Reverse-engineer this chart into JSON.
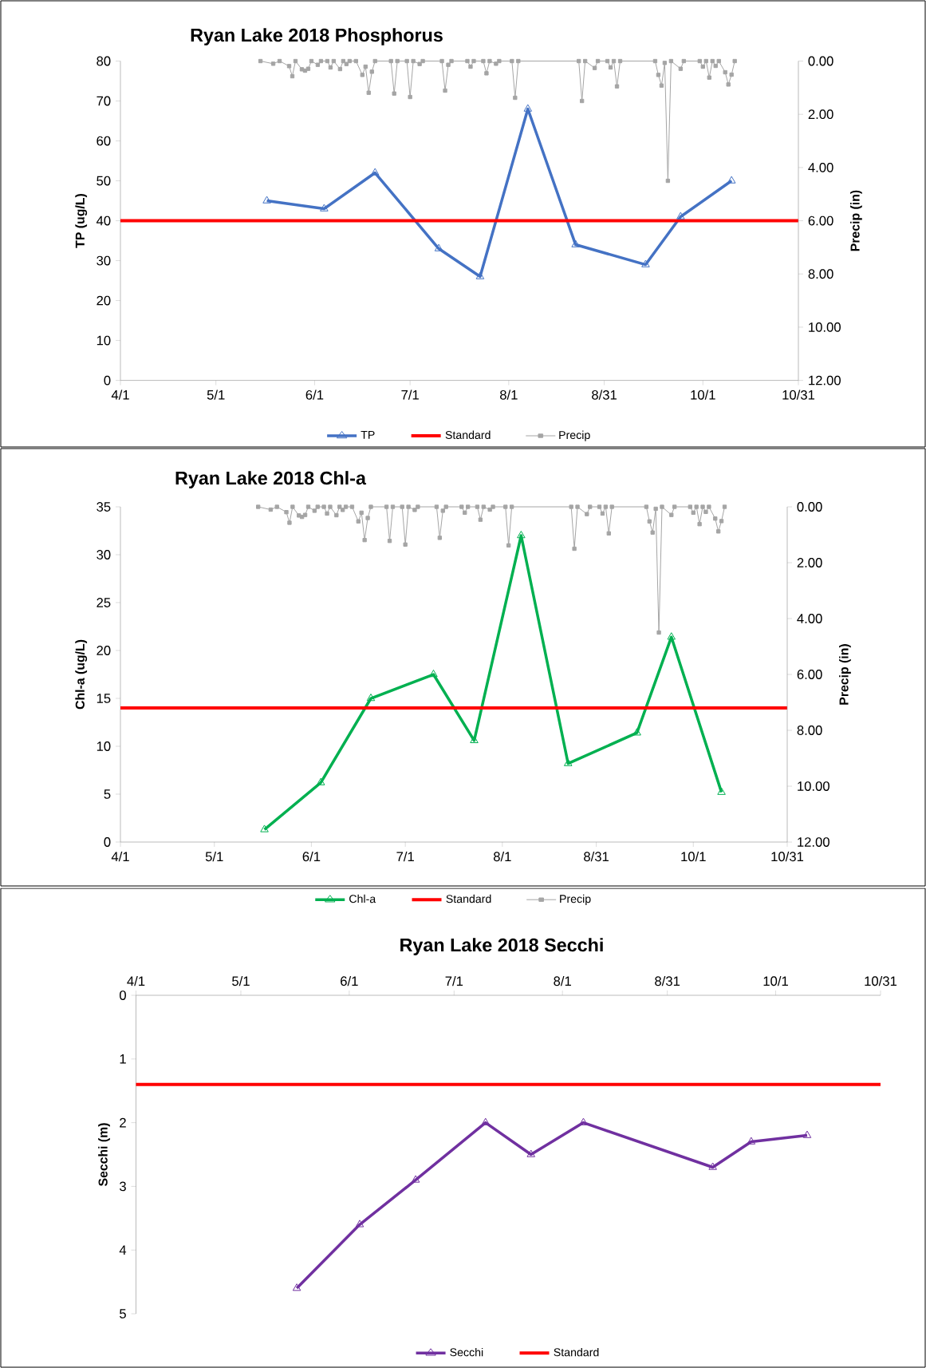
{
  "chart_data": [
    {
      "type": "line",
      "title": "Ryan Lake 2018 Phosphorus",
      "ylabel": "TP (ug/L)",
      "y2label": "Precip (in)",
      "legend": "bottom",
      "xlim": [
        "2018-04-01",
        "2018-10-31"
      ],
      "xticks": [
        {
          "value": "2018-04-01",
          "label": "4/1"
        },
        {
          "value": "2018-05-01",
          "label": "5/1"
        },
        {
          "value": "2018-06-01",
          "label": "6/1"
        },
        {
          "value": "2018-07-01",
          "label": "7/1"
        },
        {
          "value": "2018-08-01",
          "label": "8/1"
        },
        {
          "value": "2018-08-31",
          "label": "8/31"
        },
        {
          "value": "2018-10-01",
          "label": "10/1"
        },
        {
          "value": "2018-10-31",
          "label": "10/31"
        }
      ],
      "ylim": [
        0,
        80
      ],
      "yticks": [
        0,
        10,
        20,
        30,
        40,
        50,
        60,
        70,
        80
      ],
      "y2lim": [
        12,
        0
      ],
      "y2ticks": [
        {
          "value": 0,
          "label": "0.00"
        },
        {
          "value": 2,
          "label": "2.00"
        },
        {
          "value": 4,
          "label": "4.00"
        },
        {
          "value": 6,
          "label": "6.00"
        },
        {
          "value": 8,
          "label": "8.00"
        },
        {
          "value": 10,
          "label": "10.00"
        },
        {
          "value": 12,
          "label": "12.00"
        }
      ],
      "ref_lines": [
        {
          "axis": "y",
          "value": 40,
          "label": "Standard",
          "color": "#ff0000"
        }
      ],
      "series": [
        {
          "name": "TP",
          "color": "#4472c4",
          "marker": "triangle",
          "x": [
            "2018-05-17",
            "2018-06-04",
            "2018-06-20",
            "2018-07-10",
            "2018-07-23",
            "2018-08-07",
            "2018-08-22",
            "2018-09-13",
            "2018-09-24",
            "2018-10-10"
          ],
          "values": [
            45,
            43,
            52,
            33,
            26,
            68,
            34,
            29,
            41,
            50
          ]
        },
        {
          "name": "Precip",
          "color": "#a5a5a5",
          "marker": "square",
          "axis": "y2",
          "x": [
            "2018-05-15",
            "2018-05-19",
            "2018-05-21",
            "2018-05-24",
            "2018-05-25",
            "2018-05-26",
            "2018-05-28",
            "2018-05-29",
            "2018-05-30",
            "2018-05-31",
            "2018-06-02",
            "2018-06-03",
            "2018-06-05",
            "2018-06-06",
            "2018-06-07",
            "2018-06-09",
            "2018-06-10",
            "2018-06-11",
            "2018-06-12",
            "2018-06-14",
            "2018-06-16",
            "2018-06-17",
            "2018-06-18",
            "2018-06-19",
            "2018-06-20",
            "2018-06-25",
            "2018-06-26",
            "2018-06-27",
            "2018-06-30",
            "2018-07-01",
            "2018-07-02",
            "2018-07-04",
            "2018-07-05",
            "2018-07-11",
            "2018-07-12",
            "2018-07-13",
            "2018-07-14",
            "2018-07-19",
            "2018-07-20",
            "2018-07-21",
            "2018-07-24",
            "2018-07-25",
            "2018-07-26",
            "2018-07-28",
            "2018-07-29",
            "2018-08-02",
            "2018-08-03",
            "2018-08-04",
            "2018-08-23",
            "2018-08-24",
            "2018-08-25",
            "2018-08-28",
            "2018-08-29",
            "2018-09-01",
            "2018-09-02",
            "2018-09-03",
            "2018-09-04",
            "2018-09-05",
            "2018-09-16",
            "2018-09-17",
            "2018-09-18",
            "2018-09-19",
            "2018-09-20",
            "2018-09-21",
            "2018-09-24",
            "2018-09-25",
            "2018-09-30",
            "2018-10-01",
            "2018-10-02",
            "2018-10-03",
            "2018-10-04",
            "2018-10-05",
            "2018-10-06",
            "2018-10-08",
            "2018-10-09",
            "2018-10-10",
            "2018-10-11"
          ],
          "values": [
            0,
            0.1,
            0,
            0.19,
            0.57,
            0,
            0.31,
            0.36,
            0.29,
            0,
            0.14,
            0,
            0,
            0.24,
            0,
            0.3,
            0,
            0.11,
            0,
            0,
            0.52,
            0.21,
            1.19,
            0.4,
            0,
            0,
            1.22,
            0,
            0,
            1.35,
            0,
            0.11,
            0,
            0,
            1.11,
            0.14,
            0,
            0,
            0.21,
            0,
            0,
            0.46,
            0,
            0.1,
            0,
            0,
            1.38,
            0,
            0,
            1.5,
            0,
            0.26,
            0,
            0,
            0.24,
            0,
            0.95,
            0,
            0,
            0.52,
            0.92,
            0.07,
            4.5,
            0,
            0.29,
            0,
            0,
            0.21,
            0,
            0.62,
            0,
            0.18,
            0,
            0.42,
            0.88,
            0.51,
            0
          ]
        }
      ]
    },
    {
      "type": "line",
      "title": "Ryan Lake 2018 Chl-a",
      "ylabel": "Chl-a (ug/L)",
      "y2label": "Precip (in)",
      "legend": "bottom",
      "xlim": [
        "2018-04-01",
        "2018-10-31"
      ],
      "xticks": [
        {
          "value": "2018-04-01",
          "label": "4/1"
        },
        {
          "value": "2018-05-01",
          "label": "5/1"
        },
        {
          "value": "2018-06-01",
          "label": "6/1"
        },
        {
          "value": "2018-07-01",
          "label": "7/1"
        },
        {
          "value": "2018-08-01",
          "label": "8/1"
        },
        {
          "value": "2018-08-31",
          "label": "8/31"
        },
        {
          "value": "2018-10-01",
          "label": "10/1"
        },
        {
          "value": "2018-10-31",
          "label": "10/31"
        }
      ],
      "ylim": [
        0,
        35
      ],
      "yticks": [
        0,
        5,
        10,
        15,
        20,
        25,
        30,
        35
      ],
      "y2lim": [
        12,
        0
      ],
      "y2ticks": [
        {
          "value": 0,
          "label": "0.00"
        },
        {
          "value": 2,
          "label": "2.00"
        },
        {
          "value": 4,
          "label": "4.00"
        },
        {
          "value": 6,
          "label": "6.00"
        },
        {
          "value": 8,
          "label": "8.00"
        },
        {
          "value": 10,
          "label": "10.00"
        },
        {
          "value": 12,
          "label": "12.00"
        }
      ],
      "ref_lines": [
        {
          "axis": "y",
          "value": 14,
          "label": "Standard",
          "color": "#ff0000"
        }
      ],
      "series": [
        {
          "name": "Chl-a",
          "color": "#00b050",
          "marker": "triangle",
          "x": [
            "2018-05-17",
            "2018-06-04",
            "2018-06-20",
            "2018-07-10",
            "2018-07-23",
            "2018-08-07",
            "2018-08-22",
            "2018-09-13",
            "2018-09-24",
            "2018-10-10"
          ],
          "values": [
            1.3,
            6.2,
            15.0,
            17.5,
            10.6,
            32.0,
            8.2,
            11.4,
            21.4,
            5.2
          ]
        },
        {
          "name": "Precip",
          "color": "#a5a5a5",
          "marker": "square",
          "axis": "y2",
          "x": [
            "2018-05-15",
            "2018-05-19",
            "2018-05-21",
            "2018-05-24",
            "2018-05-25",
            "2018-05-26",
            "2018-05-28",
            "2018-05-29",
            "2018-05-30",
            "2018-05-31",
            "2018-06-02",
            "2018-06-03",
            "2018-06-05",
            "2018-06-06",
            "2018-06-07",
            "2018-06-09",
            "2018-06-10",
            "2018-06-11",
            "2018-06-12",
            "2018-06-14",
            "2018-06-16",
            "2018-06-17",
            "2018-06-18",
            "2018-06-19",
            "2018-06-20",
            "2018-06-25",
            "2018-06-26",
            "2018-06-27",
            "2018-06-30",
            "2018-07-01",
            "2018-07-02",
            "2018-07-04",
            "2018-07-05",
            "2018-07-11",
            "2018-07-12",
            "2018-07-13",
            "2018-07-14",
            "2018-07-19",
            "2018-07-20",
            "2018-07-21",
            "2018-07-24",
            "2018-07-25",
            "2018-07-26",
            "2018-07-28",
            "2018-07-29",
            "2018-08-02",
            "2018-08-03",
            "2018-08-04",
            "2018-08-23",
            "2018-08-24",
            "2018-08-25",
            "2018-08-28",
            "2018-08-29",
            "2018-09-01",
            "2018-09-02",
            "2018-09-03",
            "2018-09-04",
            "2018-09-05",
            "2018-09-16",
            "2018-09-17",
            "2018-09-18",
            "2018-09-19",
            "2018-09-20",
            "2018-09-21",
            "2018-09-24",
            "2018-09-25",
            "2018-09-30",
            "2018-10-01",
            "2018-10-02",
            "2018-10-03",
            "2018-10-04",
            "2018-10-05",
            "2018-10-06",
            "2018-10-08",
            "2018-10-09",
            "2018-10-10",
            "2018-10-11"
          ],
          "values": [
            0,
            0.1,
            0,
            0.19,
            0.57,
            0,
            0.31,
            0.36,
            0.29,
            0,
            0.14,
            0,
            0,
            0.24,
            0,
            0.3,
            0,
            0.11,
            0,
            0,
            0.52,
            0.21,
            1.19,
            0.4,
            0,
            0,
            1.22,
            0,
            0,
            1.35,
            0,
            0.11,
            0,
            0,
            1.11,
            0.14,
            0,
            0,
            0.21,
            0,
            0,
            0.46,
            0,
            0.1,
            0,
            0,
            1.38,
            0,
            0,
            1.5,
            0,
            0.26,
            0,
            0,
            0.24,
            0,
            0.95,
            0,
            0,
            0.52,
            0.92,
            0.07,
            4.5,
            0,
            0.29,
            0,
            0,
            0.21,
            0,
            0.62,
            0,
            0.18,
            0,
            0.42,
            0.88,
            0.51,
            0
          ]
        }
      ]
    },
    {
      "type": "line",
      "title": "Ryan Lake 2018 Secchi",
      "ylabel": "Secchi (m)",
      "legend": "bottom",
      "xlim": [
        "2018-04-01",
        "2018-10-31"
      ],
      "xticks": [
        {
          "value": "2018-04-01",
          "label": "4/1"
        },
        {
          "value": "2018-05-01",
          "label": "5/1"
        },
        {
          "value": "2018-06-01",
          "label": "6/1"
        },
        {
          "value": "2018-07-01",
          "label": "7/1"
        },
        {
          "value": "2018-08-01",
          "label": "8/1"
        },
        {
          "value": "2018-08-31",
          "label": "8/31"
        },
        {
          "value": "2018-10-01",
          "label": "10/1"
        },
        {
          "value": "2018-10-31",
          "label": "10/31"
        }
      ],
      "ylim": [
        5,
        0
      ],
      "yticks": [
        0,
        1,
        2,
        3,
        4,
        5
      ],
      "ref_lines": [
        {
          "axis": "y",
          "value": 1.4,
          "label": "Standard",
          "color": "#ff0000"
        }
      ],
      "series": [
        {
          "name": "Secchi",
          "color": "#7030a0",
          "marker": "triangle",
          "x": [
            "2018-05-17",
            "2018-06-04",
            "2018-06-20",
            "2018-07-10",
            "2018-07-23",
            "2018-08-07",
            "2018-09-13",
            "2018-09-24",
            "2018-10-10"
          ],
          "values": [
            4.6,
            3.6,
            2.9,
            2.0,
            2.5,
            2.0,
            2.7,
            2.3,
            2.2
          ]
        }
      ]
    }
  ]
}
